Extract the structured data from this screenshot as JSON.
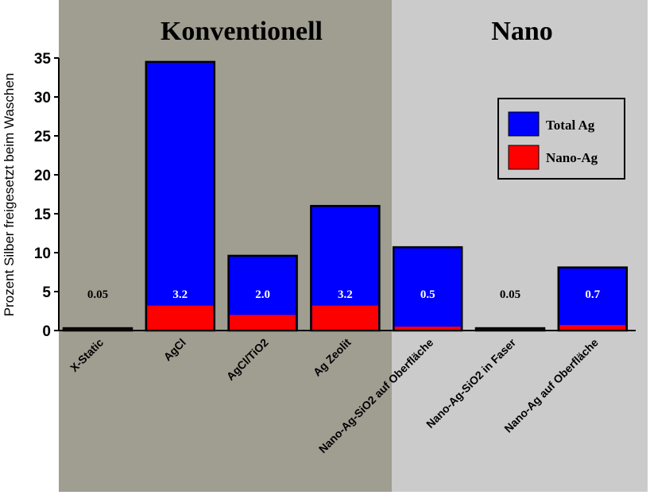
{
  "chart_data": {
    "type": "bar",
    "stacked": "overlay",
    "ylabel": "Prozent Silber freigesetzt beim Waschen",
    "ylim": [
      0,
      35
    ],
    "yticks": [
      0,
      5,
      10,
      15,
      20,
      25,
      30,
      35
    ],
    "grid": false,
    "legend_position": "top-right",
    "groups": [
      {
        "label": "Konventionell",
        "color": "#a09d91"
      },
      {
        "label": "Nano",
        "color": "#cbcbcb"
      }
    ],
    "categories": [
      "X-Static",
      "AgCl",
      "AgCl/TiO2",
      "Ag Zeolit",
      "Nano-Ag-SiO2 auf Oberfläche",
      "Nano-Ag-SiO2 in Faser",
      "Nano-Ag auf Oberfläche"
    ],
    "category_group": [
      0,
      0,
      0,
      0,
      1,
      1,
      1
    ],
    "series": [
      {
        "name": "Total Ag",
        "color": "#0000ff",
        "values": [
          0.3,
          34.5,
          9.6,
          16.0,
          10.7,
          0.3,
          8.1
        ]
      },
      {
        "name": "Nano-Ag",
        "color": "#ff0000",
        "values": [
          0.05,
          3.2,
          2.0,
          3.2,
          0.5,
          0.05,
          0.7
        ]
      }
    ],
    "data_labels": [
      "0.05",
      "3.2",
      "2.0",
      "3.2",
      "0.5",
      "0.05",
      "0.7"
    ]
  }
}
